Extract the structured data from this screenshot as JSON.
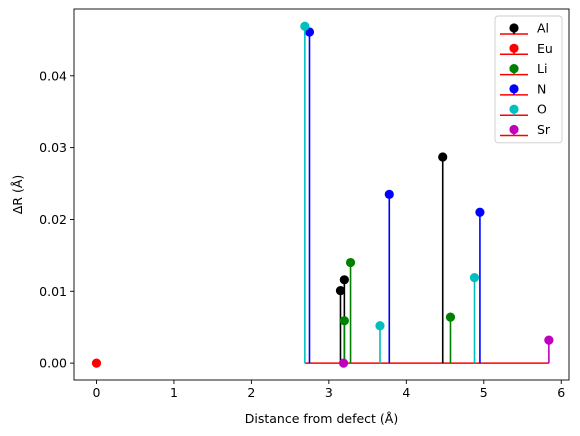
{
  "chart_data": {
    "type": "scatter",
    "style": "stem",
    "xlabel": "Distance from defect (Å)",
    "ylabel": "ΔR (Å)",
    "xlim": [
      -0.29,
      6.1
    ],
    "ylim": [
      -0.00235,
      0.0493
    ],
    "xticks": [
      0,
      1,
      2,
      3,
      4,
      5,
      6
    ],
    "xtick_labels": [
      "0",
      "1",
      "2",
      "3",
      "4",
      "5",
      "6"
    ],
    "yticks": [
      0.0,
      0.01,
      0.02,
      0.03,
      0.04
    ],
    "ytick_labels": [
      "0.00",
      "0.01",
      "0.02",
      "0.03",
      "0.04"
    ],
    "baseline": {
      "y": 0,
      "x_range": [
        2.69,
        5.84
      ],
      "color": "#ff0000"
    },
    "grid": false,
    "legend": {
      "placement": "top-right"
    },
    "series": [
      {
        "name": "Al",
        "color": "#000000",
        "x": [
          3.15,
          3.2,
          4.47
        ],
        "y": [
          0.0101,
          0.0116,
          0.0287
        ]
      },
      {
        "name": "Eu",
        "color": "#ff0000",
        "x": [
          0.0
        ],
        "y": [
          0.0
        ]
      },
      {
        "name": "Li",
        "color": "#008000",
        "x": [
          3.2,
          3.28,
          4.57
        ],
        "y": [
          0.0059,
          0.014,
          0.0064
        ]
      },
      {
        "name": "N",
        "color": "#0000ff",
        "x": [
          2.75,
          3.78,
          4.95
        ],
        "y": [
          0.0461,
          0.0235,
          0.021
        ]
      },
      {
        "name": "O",
        "color": "#00bfbf",
        "x": [
          2.69,
          3.66,
          4.88
        ],
        "y": [
          0.0469,
          0.0052,
          0.0119
        ]
      },
      {
        "name": "Sr",
        "color": "#bf00bf",
        "x": [
          3.19,
          5.84
        ],
        "y": [
          0.0,
          0.0032
        ]
      }
    ]
  }
}
